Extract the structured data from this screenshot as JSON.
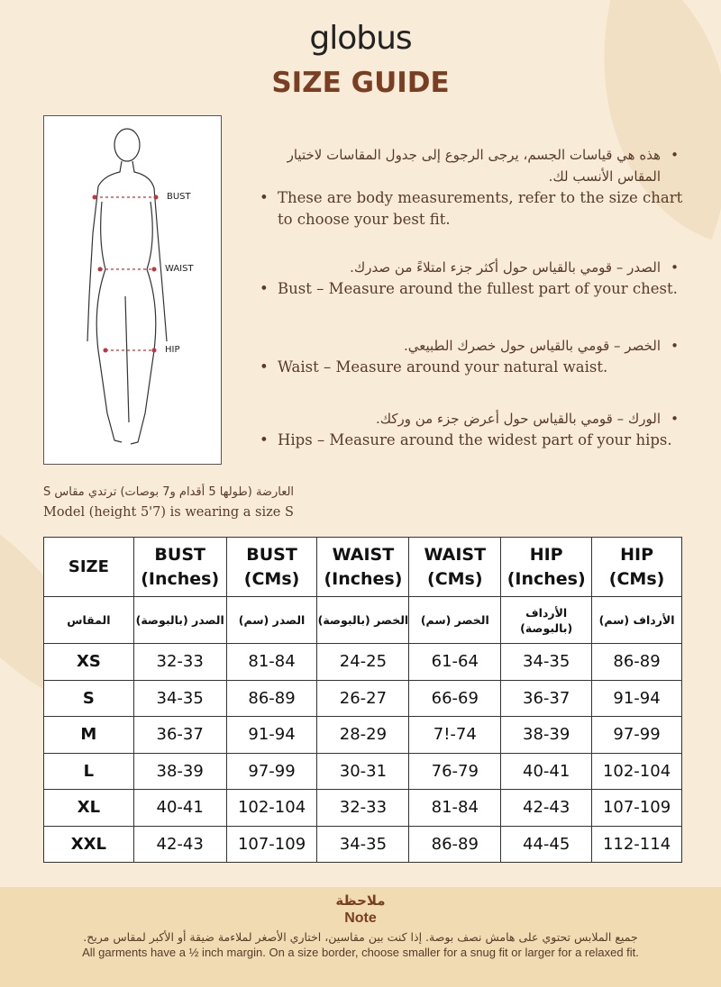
{
  "brand": "globus",
  "title": "SIZE GUIDE",
  "figure": {
    "labels": [
      "BUST",
      "WAIST",
      "HIP"
    ],
    "marker_color": "#c8323c"
  },
  "bullets": [
    {
      "ar": "هذه هي قياسات الجسم، يرجى الرجوع إلى جدول المقاسات لاختيار المقاس الأنسب لك.",
      "en": "These are body measurements, refer to the size chart to choose your best fit."
    },
    {
      "ar": "الصدر – قومي بالقياس حول أكثر جزء امتلاءً من صدرك.",
      "en": "Bust – Measure around the fullest part of your chest."
    },
    {
      "ar": "الخصر – قومي بالقياس حول خصرك الطبيعي.",
      "en": "Waist – Measure around your natural waist."
    },
    {
      "ar": "الورك – قومي بالقياس حول أعرض جزء من وركك.",
      "en": "Hips – Measure around the widest part of your hips."
    }
  ],
  "model": {
    "ar": "العارضة (طولها 5 أقدام و7 بوصات) ترتدي مقاس S",
    "en": "Model (height 5'7) is wearing a size S"
  },
  "table": {
    "headers": [
      [
        "SIZE",
        ""
      ],
      [
        "BUST",
        "(Inches)"
      ],
      [
        "BUST",
        "(CMs)"
      ],
      [
        "WAIST",
        "(Inches)"
      ],
      [
        "WAIST",
        "(CMs)"
      ],
      [
        "HIP",
        "(Inches)"
      ],
      [
        "HIP",
        "(CMs)"
      ]
    ],
    "headers_ar": [
      "المقاس",
      "الصدر (بالبوصة)",
      "الصدر (سم)",
      "الخصر (بالبوصة)",
      "الخصر (سم)",
      "الأرداف (بالبوصة)",
      "الأرداف (سم)"
    ],
    "rows": [
      [
        "XS",
        "32-33",
        "81-84",
        "24-25",
        "61-64",
        "34-35",
        "86-89"
      ],
      [
        "S",
        "34-35",
        "86-89",
        "26-27",
        "66-69",
        "36-37",
        "91-94"
      ],
      [
        "M",
        "36-37",
        "91-94",
        "28-29",
        "7!-74",
        "38-39",
        "97-99"
      ],
      [
        "L",
        "38-39",
        "97-99",
        "30-31",
        "76-79",
        "40-41",
        "102-104"
      ],
      [
        "XL",
        "40-41",
        "102-104",
        "32-33",
        "81-84",
        "42-43",
        "107-109"
      ],
      [
        "XXL",
        "42-43",
        "107-109",
        "34-35",
        "86-89",
        "44-45",
        "112-114"
      ]
    ]
  },
  "note": {
    "title_ar": "ملاحظة",
    "title_en": "Note",
    "text_ar": "جميع الملابس تحتوي على هامش نصف بوصة. إذا كنت بين مقاسين، اختاري الأصغر لملاءمة ضيقة أو الأكبر لمقاس مريح.",
    "text_en": "All garments have a ½ inch margin. On a size border, choose smaller for a snug fit or larger for a relaxed fit."
  },
  "colors": {
    "accent": "#7a3e22",
    "background": "#f8ecd8",
    "note_band": "#f0dbb3"
  }
}
